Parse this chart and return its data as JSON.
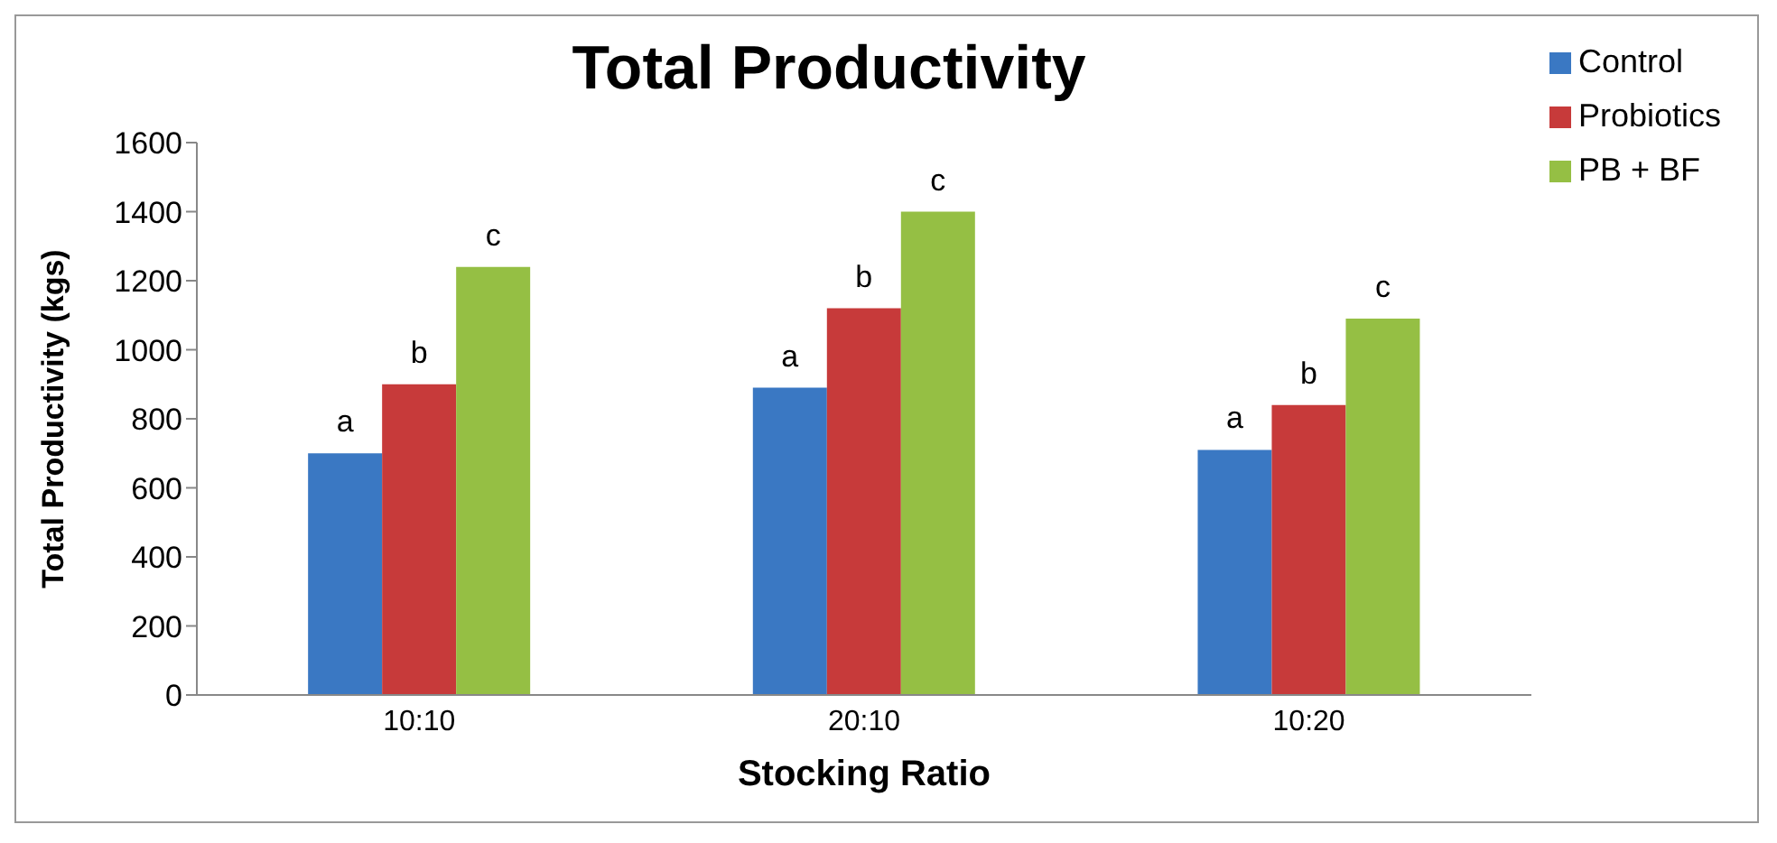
{
  "chart_data": {
    "type": "bar",
    "title": "Total Productivity",
    "xlabel": "Stocking Ratio",
    "ylabel": "Total Productivity (kgs)",
    "categories": [
      "10:10",
      "20:10",
      "10:20"
    ],
    "series": [
      {
        "name": "Control",
        "color": "#3a78c3",
        "values": [
          700,
          890,
          710
        ],
        "value_labels": [
          "a",
          "a",
          "a"
        ]
      },
      {
        "name": "Probiotics",
        "color": "#c73a3a",
        "values": [
          900,
          1120,
          840
        ],
        "value_labels": [
          "b",
          "b",
          "b"
        ]
      },
      {
        "name": "PB + BF",
        "color": "#95bf44",
        "values": [
          1240,
          1400,
          1090
        ],
        "value_labels": [
          "c",
          "c",
          "c"
        ]
      }
    ],
    "ylim": [
      0,
      1600
    ],
    "yticks": [
      0,
      200,
      400,
      600,
      800,
      1000,
      1200,
      1400,
      1600
    ],
    "grid": false,
    "legend": "top right"
  }
}
